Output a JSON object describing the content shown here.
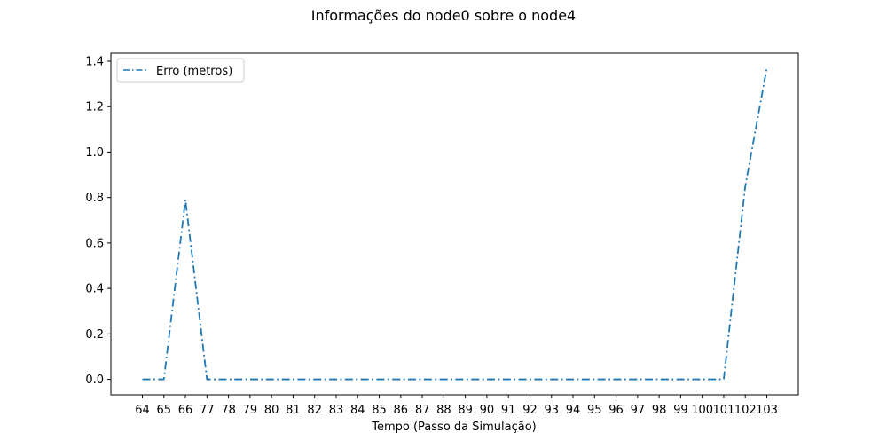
{
  "chart_data": {
    "type": "line",
    "title": "Informações do node0 sobre o node4",
    "xlabel": "Tempo (Passo da Simulação)",
    "ylabel": "",
    "categories": [
      "64",
      "65",
      "66",
      "77",
      "78",
      "79",
      "80",
      "81",
      "82",
      "83",
      "84",
      "85",
      "86",
      "87",
      "88",
      "89",
      "90",
      "91",
      "92",
      "93",
      "94",
      "95",
      "96",
      "97",
      "98",
      "99",
      "100",
      "101",
      "102",
      "103"
    ],
    "yticks": [
      "0.0",
      "0.2",
      "0.4",
      "0.6",
      "0.8",
      "1.0",
      "1.2",
      "1.4"
    ],
    "ylim": [
      -0.068,
      1.435
    ],
    "grid": false,
    "legend_position": "top-left",
    "series": [
      {
        "name": "Erro (metros)",
        "color": "#1f77b4",
        "line_style": "dash-dot",
        "values": [
          0,
          0,
          0.79,
          0,
          0,
          0,
          0,
          0,
          0,
          0,
          0,
          0,
          0,
          0,
          0,
          0,
          0,
          0,
          0,
          0,
          0,
          0,
          0,
          0,
          0,
          0,
          0,
          0,
          0.85,
          1.37
        ]
      }
    ]
  }
}
